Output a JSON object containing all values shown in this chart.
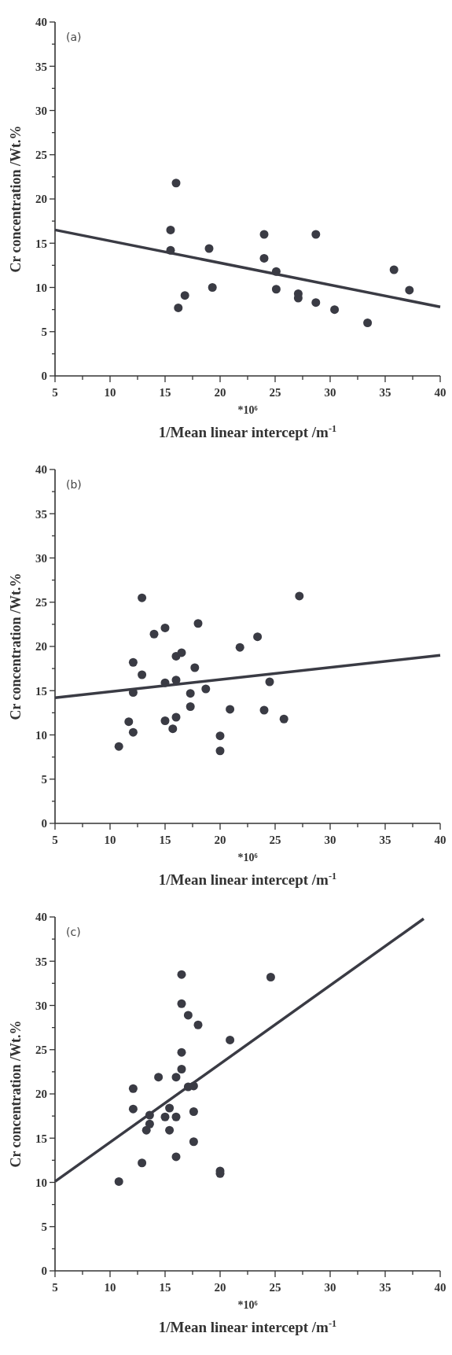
{
  "chart_data": [
    {
      "type": "scatter",
      "title": "(a)",
      "xlabel": "1/Mean linear intercept /m$^{-1}$",
      "ylabel": "Cr concentration /Wt.%",
      "annotations": [
        "*10⁶"
      ],
      "xlim": [
        5,
        40
      ],
      "ylim": [
        0,
        40
      ],
      "xticks": [
        5,
        {
          "value": 7.5,
          "label": null
        },
        10,
        {
          "value": 12.5,
          "label": null
        },
        15,
        {
          "value": 17.5,
          "label": null
        },
        20,
        {
          "value": 22.5,
          "label": null
        },
        25,
        {
          "value": 27.5,
          "label": null
        },
        30,
        {
          "value": 32.5,
          "label": null
        },
        35,
        {
          "value": 37.5,
          "label": null
        },
        40
      ],
      "yticks": [
        0,
        {
          "value": 2.5,
          "label": null
        },
        5,
        {
          "value": 7.5,
          "label": null
        },
        10,
        {
          "value": 12.5,
          "label": null
        },
        15,
        {
          "value": 17.5,
          "label": null
        },
        20,
        {
          "value": 22.5,
          "label": null
        },
        25,
        {
          "value": 27.5,
          "label": null
        },
        30,
        {
          "value": 32.5,
          "label": null
        },
        35,
        {
          "value": 37.5,
          "label": null
        },
        40
      ],
      "grid": false,
      "series": [
        {
          "marker": "circle",
          "color": "#3a3b44",
          "x": [
            15.5,
            15.5,
            16,
            16.2,
            16.8,
            19,
            19.3,
            24,
            24,
            25.1,
            25.1,
            27.1,
            27.1,
            28.7,
            28.7,
            30.4,
            33.4,
            35.8,
            37.2
          ],
          "values": [
            16.5,
            14.2,
            21.8,
            7.7,
            9.1,
            14.4,
            10,
            16,
            13.3,
            11.8,
            9.8,
            9.3,
            8.8,
            16,
            8.3,
            7.5,
            6,
            12,
            9.7
          ]
        },
        {
          "type": "line",
          "color": "#3a3b44",
          "x": [
            5,
            40
          ],
          "values": [
            16.5,
            7.8
          ]
        }
      ]
    },
    {
      "type": "scatter",
      "title": "(b)",
      "xlabel": "1/Mean linear intercept /m$^{-1}$",
      "ylabel": "Cr concentration /Wt.%",
      "annotations": [
        "*10⁶"
      ],
      "xlim": [
        5,
        40
      ],
      "ylim": [
        0,
        40
      ],
      "xticks": [
        5,
        {
          "value": 7.5,
          "label": null
        },
        10,
        {
          "value": 12.5,
          "label": null
        },
        15,
        {
          "value": 17.5,
          "label": null
        },
        20,
        {
          "value": 22.5,
          "label": null
        },
        25,
        {
          "value": 27.5,
          "label": null
        },
        30,
        {
          "value": 32.5,
          "label": null
        },
        35,
        {
          "value": 37.5,
          "label": null
        },
        40
      ],
      "yticks": [
        0,
        {
          "value": 2.5,
          "label": null
        },
        5,
        {
          "value": 7.5,
          "label": null
        },
        10,
        {
          "value": 12.5,
          "label": null
        },
        15,
        {
          "value": 17.5,
          "label": null
        },
        20,
        {
          "value": 22.5,
          "label": null
        },
        25,
        {
          "value": 27.5,
          "label": null
        },
        30,
        {
          "value": 32.5,
          "label": null
        },
        35,
        {
          "value": 37.5,
          "label": null
        },
        40
      ],
      "grid": false,
      "series": [
        {
          "marker": "circle",
          "color": "#3a3b44",
          "x": [
            10.8,
            11.7,
            12.1,
            12.1,
            12.1,
            12.9,
            12.9,
            14,
            15,
            15,
            15,
            15.7,
            16,
            16,
            16,
            16.5,
            17.3,
            17.3,
            17.7,
            18,
            18.7,
            20,
            20,
            20.9,
            21.8,
            23.4,
            24,
            24.5,
            25.8,
            27.2
          ],
          "values": [
            8.7,
            11.5,
            18.2,
            14.8,
            10.3,
            25.5,
            16.8,
            21.4,
            22.1,
            15.9,
            11.6,
            10.7,
            18.9,
            16.2,
            12,
            19.3,
            14.7,
            13.2,
            17.6,
            22.6,
            15.2,
            9.9,
            8.2,
            12.9,
            19.9,
            21.1,
            12.8,
            16,
            11.8,
            25.7
          ]
        },
        {
          "type": "line",
          "color": "#3a3b44",
          "x": [
            5,
            40
          ],
          "values": [
            14.2,
            19
          ]
        }
      ]
    },
    {
      "type": "scatter",
      "title": "(c)",
      "xlabel": "1/Mean linear intercept /m$^{-1}$",
      "ylabel": "Cr concentration /Wt.%",
      "annotations": [
        "*10⁶"
      ],
      "xlim": [
        5,
        40
      ],
      "ylim": [
        0,
        40
      ],
      "xticks": [
        5,
        {
          "value": 7.5,
          "label": null
        },
        10,
        {
          "value": 12.5,
          "label": null
        },
        15,
        {
          "value": 17.5,
          "label": null
        },
        20,
        {
          "value": 22.5,
          "label": null
        },
        25,
        {
          "value": 27.5,
          "label": null
        },
        30,
        {
          "value": 32.5,
          "label": null
        },
        35,
        {
          "value": 37.5,
          "label": null
        },
        40
      ],
      "yticks": [
        0,
        {
          "value": 2.5,
          "label": null
        },
        5,
        {
          "value": 7.5,
          "label": null
        },
        10,
        {
          "value": 12.5,
          "label": null
        },
        15,
        {
          "value": 17.5,
          "label": null
        },
        20,
        {
          "value": 22.5,
          "label": null
        },
        25,
        {
          "value": 27.5,
          "label": null
        },
        30,
        {
          "value": 32.5,
          "label": null
        },
        35,
        {
          "value": 37.5,
          "label": null
        },
        40
      ],
      "grid": false,
      "series": [
        {
          "marker": "circle",
          "color": "#3a3b44",
          "x": [
            10.8,
            12.1,
            12.1,
            12.9,
            13.3,
            13.6,
            13.6,
            14.4,
            15,
            15.4,
            15.4,
            16,
            16,
            16,
            16.5,
            16.5,
            16.5,
            16.5,
            17.1,
            17.1,
            17.6,
            17.6,
            17.6,
            18,
            20,
            20,
            20.9,
            24.6
          ],
          "values": [
            10.1,
            20.6,
            18.3,
            12.2,
            15.9,
            16.6,
            17.6,
            21.9,
            17.4,
            18.4,
            15.9,
            21.9,
            17.4,
            12.9,
            33.5,
            30.2,
            24.7,
            22.8,
            28.9,
            20.8,
            20.9,
            18,
            14.6,
            27.8,
            11.3,
            11,
            26.1,
            33.2
          ]
        },
        {
          "type": "line",
          "color": "#3a3b44",
          "x": [
            5,
            38.5
          ],
          "values": [
            10.1,
            39.8
          ]
        }
      ]
    }
  ]
}
